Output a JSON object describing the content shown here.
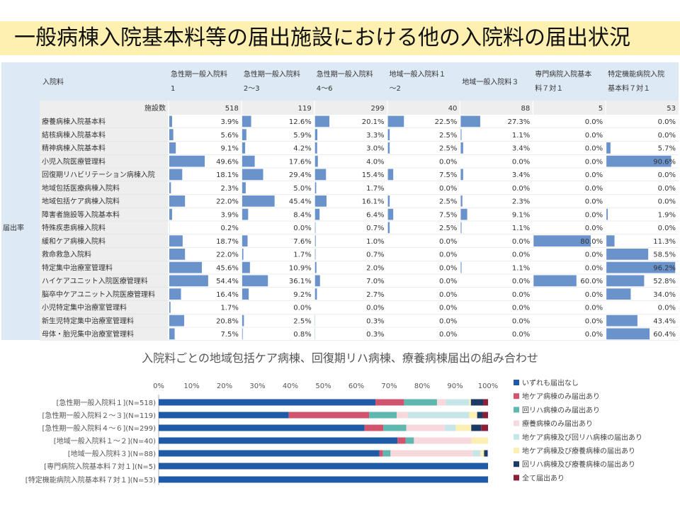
{
  "title": "一般病棟入院基本料等の届出施設における他の入院料の届出状況",
  "table": {
    "corner_label": "入院料",
    "side_label": "届出率",
    "count_label": "施設数",
    "columns": [
      {
        "line1": "急性期一般入院料",
        "line2": "1",
        "count": 518
      },
      {
        "line1": "急性期一般入院料",
        "line2": "2～3",
        "count": 119
      },
      {
        "line1": "急性期一般入院料",
        "line2": "4～6",
        "count": 299
      },
      {
        "line1": "地域一般入院料１",
        "line2": "～2",
        "count": 40
      },
      {
        "line1": "地域一般入院料３",
        "line2": "",
        "count": 88
      },
      {
        "line1": "専門病院入院基本",
        "line2": "料７対１",
        "count": 5
      },
      {
        "line1": "特定機能病院入院",
        "line2": "基本料７対１",
        "count": 53
      }
    ],
    "rows": [
      {
        "label": "療養病棟入院基本料",
        "values": [
          3.9,
          12.6,
          20.1,
          22.5,
          27.3,
          0.0,
          0.0
        ]
      },
      {
        "label": "結核病棟入院基本料",
        "values": [
          5.6,
          5.9,
          3.3,
          2.5,
          1.1,
          0.0,
          0.0
        ]
      },
      {
        "label": "精神病棟入院基本料",
        "values": [
          9.1,
          4.2,
          3.0,
          2.5,
          3.4,
          0.0,
          5.7
        ]
      },
      {
        "label": "小児入院医療管理料",
        "values": [
          49.6,
          17.6,
          4.0,
          0.0,
          0.0,
          0.0,
          90.6
        ]
      },
      {
        "label": "回復期リハビリテーション病棟入院",
        "values": [
          18.1,
          29.4,
          15.4,
          7.5,
          3.4,
          0.0,
          0.0
        ]
      },
      {
        "label": "地域包括医療病棟入院料",
        "values": [
          2.3,
          5.0,
          1.7,
          0.0,
          0.0,
          0.0,
          0.0
        ]
      },
      {
        "label": "地域包括ケア病棟入院料",
        "values": [
          22.0,
          45.4,
          16.1,
          2.5,
          2.3,
          0.0,
          0.0
        ]
      },
      {
        "label": "障害者施設等入院基本料",
        "values": [
          3.9,
          8.4,
          6.4,
          7.5,
          9.1,
          0.0,
          1.9
        ]
      },
      {
        "label": "特殊疾患病棟入院料",
        "values": [
          0.2,
          0.0,
          0.7,
          2.5,
          1.1,
          0.0,
          0.0
        ]
      },
      {
        "label": "緩和ケア病棟入院料",
        "values": [
          18.7,
          7.6,
          1.0,
          0.0,
          0.0,
          80.0,
          11.3
        ]
      },
      {
        "label": "救命救急入院料",
        "values": [
          22.0,
          1.7,
          0.7,
          0.0,
          0.0,
          0.0,
          58.5
        ]
      },
      {
        "label": "特定集中治療室管理料",
        "values": [
          45.6,
          10.9,
          2.0,
          0.0,
          1.1,
          0.0,
          96.2
        ]
      },
      {
        "label": "ハイケアユニット入院医療管理料",
        "values": [
          54.4,
          36.1,
          7.0,
          0.0,
          0.0,
          60.0,
          52.8
        ]
      },
      {
        "label": "脳卒中ケアユニット入院医療管理料",
        "values": [
          16.4,
          9.2,
          2.7,
          0.0,
          0.0,
          0.0,
          34.0
        ]
      },
      {
        "label": "小児特定集中治療室管理料",
        "values": [
          1.7,
          0.0,
          0.0,
          0.0,
          0.0,
          0.0,
          0.0
        ]
      },
      {
        "label": "新生児特定集中治療室管理料",
        "values": [
          20.8,
          2.5,
          0.3,
          0.0,
          0.0,
          0.0,
          43.4
        ]
      },
      {
        "label": "母体・胎児集中治療室管理料",
        "values": [
          7.5,
          0.8,
          0.3,
          0.0,
          0.0,
          0.0,
          60.4
        ]
      }
    ],
    "bar_color": "#6a93cc",
    "header_bg": "#dde9f5",
    "label_bg": "#eeeeee"
  },
  "chart_data": {
    "type": "bar",
    "orientation": "horizontal-stacked-100",
    "title": "入院料ごとの地域包括ケア病棟、回復期リハ病棟、療養病棟届出の組み合わせ",
    "categories": [
      "[急性期一般入院料１](N=518)",
      "[急性期一般入院料２～３](N=119)",
      "[急性期一般入院料４～６](N=299)",
      "[地域一般入院料１～２](N=40)",
      "[地域一般入院料３](N=88)",
      "[専門病院入院基本料７対１](N=5)",
      "[特定機能病院入院基本料７対１](N=53)"
    ],
    "x_ticks": [
      "0%",
      "10%",
      "20%",
      "30%",
      "40%",
      "50%",
      "60%",
      "70%",
      "80%",
      "90%",
      "100%"
    ],
    "xlim": [
      0,
      100
    ],
    "legend_position": "right",
    "series": [
      {
        "name": "いずれも届出なし",
        "color": "#1f5aa6",
        "values": [
          65.8,
          39.5,
          62.5,
          72.5,
          67.0,
          100,
          100
        ]
      },
      {
        "name": "地ケア病棟のみ届出あり",
        "color": "#d1546f",
        "values": [
          8.7,
          24.4,
          5.7,
          2.5,
          1.1,
          0,
          0
        ]
      },
      {
        "name": "回リハ病棟のみ届出あり",
        "color": "#5fb8b0",
        "values": [
          10.0,
          8.4,
          7.0,
          2.5,
          2.3,
          0,
          0
        ]
      },
      {
        "name": "療養病棟のみ届出あり",
        "color": "#f7d9dd",
        "values": [
          2.7,
          3.4,
          11.7,
          17.5,
          25.0,
          0,
          0
        ]
      },
      {
        "name": "地ケア病棟及び回リハ病棟の届出あり",
        "color": "#c6e6ea",
        "values": [
          7.0,
          18.5,
          3.3,
          0,
          2.3,
          0,
          0
        ]
      },
      {
        "name": "地ケア病棟及び療養病棟の届出あり",
        "color": "#fbefb4",
        "values": [
          0.6,
          2.5,
          4.7,
          5.0,
          1.1,
          0,
          0
        ]
      },
      {
        "name": "回リハ病棟及び療養病棟の届出あり",
        "color": "#1b3a66",
        "values": [
          3.7,
          1.7,
          3.0,
          0,
          1.1,
          0,
          0
        ]
      },
      {
        "name": "全て届出あり",
        "color": "#8b1f35",
        "values": [
          1.5,
          1.6,
          2.1,
          0,
          0,
          0,
          0
        ]
      }
    ]
  }
}
